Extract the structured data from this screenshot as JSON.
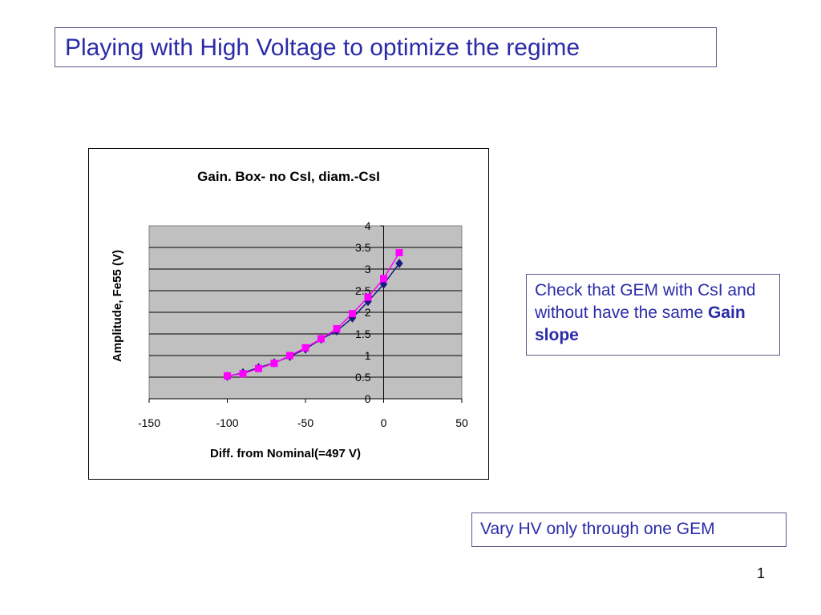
{
  "slide": {
    "title": "Playing with High Voltage to optimize the regime",
    "note1_text": "Check that GEM with CsI and without have the same",
    "note1_bold": "Gain slope",
    "note2": "Vary HV only through one GEM",
    "page_number": "1"
  },
  "colors": {
    "accent_text": "#2b2ba8",
    "plot_area": "#c0c0c0",
    "series1": "#1a1a80",
    "series2": "#ff00ff"
  },
  "chart_data": {
    "type": "line",
    "title": "Gain. Box- no CsI, diam.-CsI",
    "xlabel": "Diff. from Nominal(=497 V)",
    "ylabel": "Amplitude, Fe55 (V)",
    "xlim": [
      -150,
      50
    ],
    "ylim": [
      0,
      4
    ],
    "x_ticks": [
      "-150",
      "-100",
      "-50",
      "0",
      "50"
    ],
    "y_ticks": [
      "0",
      "0.5",
      "1",
      "1.5",
      "2",
      "2.5",
      "3",
      "3.5",
      "4"
    ],
    "grid": "horizontal",
    "legend": "none",
    "series": [
      {
        "marker": "diamond",
        "color": "#1a1a80",
        "x": [
          -100,
          -90,
          -80,
          -70,
          -60,
          -50,
          -40,
          -30,
          -20,
          -10,
          0,
          10
        ],
        "y": [
          0.52,
          0.6,
          0.72,
          0.83,
          0.98,
          1.15,
          1.38,
          1.57,
          1.87,
          2.25,
          2.65,
          3.13
        ]
      },
      {
        "marker": "square",
        "color": "#ff00ff",
        "x": [
          -100,
          -90,
          -80,
          -70,
          -60,
          -50,
          -40,
          -30,
          -20,
          -10,
          0,
          10
        ],
        "y": [
          0.53,
          0.58,
          0.7,
          0.82,
          1.0,
          1.18,
          1.39,
          1.62,
          1.97,
          2.35,
          2.78,
          3.38
        ]
      }
    ]
  }
}
